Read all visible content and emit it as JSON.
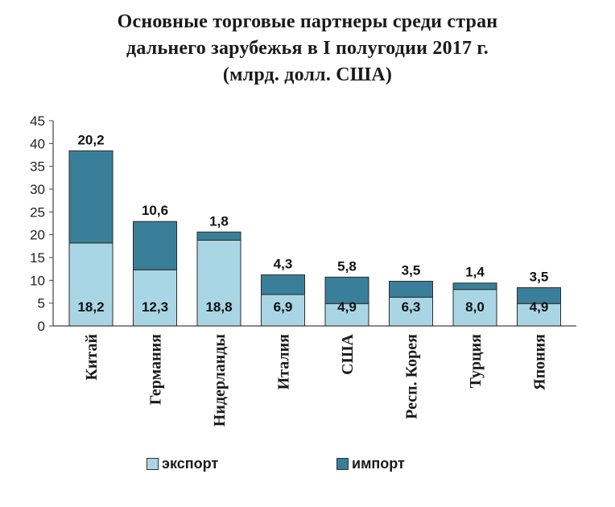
{
  "title_lines": [
    "Основные торговые партнеры среди стран",
    "дальнего зарубежья в I полугодии 2017 г.",
    "(млрд. долл. США)"
  ],
  "colors": {
    "export": "#a9d6e5",
    "import": "#3a7f99",
    "stroke": "#2b2b2b"
  },
  "legend": {
    "export_label": "экспорт",
    "import_label": "импорт"
  },
  "chart_data": {
    "type": "bar",
    "stacked": true,
    "title": "Основные торговые партнеры среди стран дальнего зарубежья в I полугодии 2017 г. (млрд. долл. США)",
    "xlabel": "",
    "ylabel": "",
    "ylim": [
      0,
      45
    ],
    "yticks": [
      0,
      5,
      10,
      15,
      20,
      25,
      30,
      35,
      40,
      45
    ],
    "grid": false,
    "legend_position": "bottom",
    "categories": [
      "Китай",
      "Германия",
      "Нидерланды",
      "Италия",
      "США",
      "Респ. Корея",
      "Турция",
      "Япония"
    ],
    "series": [
      {
        "name": "экспорт",
        "values": [
          18.2,
          12.3,
          18.8,
          6.9,
          4.9,
          6.3,
          8.0,
          4.9
        ],
        "labels": [
          "18,2",
          "12,3",
          "18,8",
          "6,9",
          "4,9",
          "6,3",
          "8,0",
          "4,9"
        ]
      },
      {
        "name": "импорт",
        "values": [
          20.2,
          10.6,
          1.8,
          4.3,
          5.8,
          3.5,
          1.4,
          3.5
        ],
        "labels": [
          "20,2",
          "10,6",
          "1,8",
          "4,3",
          "5,8",
          "3,5",
          "1,4",
          "3,5"
        ]
      }
    ]
  }
}
